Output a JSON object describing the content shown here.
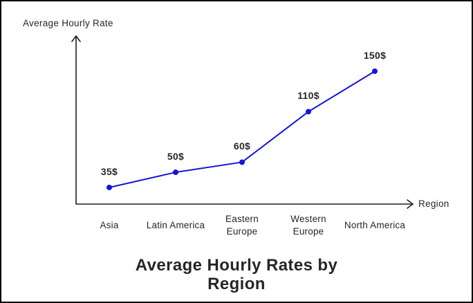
{
  "chart_data": {
    "type": "line",
    "title": "Average Hourly Rates by Region",
    "ylabel": "Average Hourly Rate",
    "xlabel": "Region",
    "categories": [
      "Asia",
      "Latin America",
      "Eastern Europe",
      "Western Europe",
      "North America"
    ],
    "values": [
      35,
      50,
      60,
      110,
      150
    ],
    "point_labels": [
      "35$",
      "50$",
      "60$",
      "110$",
      "150$"
    ],
    "legend": "off",
    "grid": "off",
    "axis_arrows": true,
    "colors": {
      "line": "#1414d7",
      "marker": "#1414d7",
      "axis": "#1e1e1e",
      "text": "#262626",
      "background": "#ffffff"
    }
  }
}
